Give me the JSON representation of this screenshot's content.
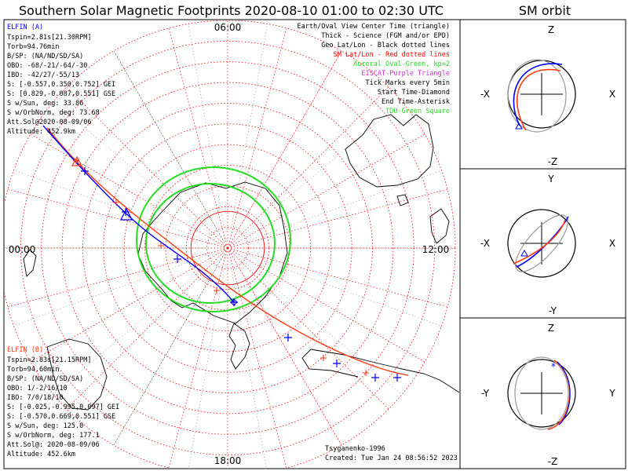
{
  "title": "Southern Solar Magnetic Footprints 2020-08-10 01:00 to 02:30 UTC",
  "right_title": "SM orbit",
  "colors": {
    "elfin_a": "#0000ff",
    "elfin_b": "#ff3c14",
    "sm_grid": "#ff0000",
    "auroral_oval": "#22dd22",
    "eiscat": "#cc33cc",
    "geo": "#000000"
  },
  "chart_data": {
    "type": "polar-footprint-map",
    "hemisphere": "south",
    "mlt_labels": [
      {
        "text": "06:00",
        "mlt": 6
      },
      {
        "text": "12:00",
        "mlt": 12
      },
      {
        "text": "18:00",
        "mlt": 18
      },
      {
        "text": "00:00",
        "mlt": 0
      }
    ],
    "elfin_a": {
      "header": "ELFIN (A)",
      "lines": [
        "Tspin=2.81s[21.30RPM]",
        "Torb=94.76min",
        "B/SP: (NA/ND/SD/SA)",
        "OBO: -68/-21/-64/-30",
        "IBO: -42/27/-55/13",
        "S: [-0.557,0.350,0.752] GEI",
        "S: [0.829,-0.087,0.551] GSE",
        "S w/Sun, deg: 33.86",
        "S w/OrbNorm, deg: 73.68",
        "Att.Sol@2020-08-09/06",
        "Altitude: 452.9km"
      ]
    },
    "elfin_b": {
      "header": "ELFIN (B)",
      "lines": [
        "Tspin=2.83s[21.15RPM]",
        "Torb=94.60min",
        "B/SP: (NA/ND/SD/SA)",
        "OBO: 1/-2/16/10",
        "IBO: 7/0/18/10",
        "S: [-0.025,-0.995,0.097] GEI",
        "S: [-0.570,0.669,0.551] GSE",
        "S w/Sun, deg: 125.0",
        "S w/OrbNorm, deg: 177.1",
        "Att.Sol@: 2020-08-09/06",
        "Altitude: 452.6km"
      ]
    },
    "legend": [
      {
        "text": "Earth/Oval View Center Time (triangle)",
        "color": "#000000"
      },
      {
        "text": "Thick - Science (FGM and/or EPD)",
        "color": "#000000"
      },
      {
        "text": "Geo Lat/Lon - Black dotted lines",
        "color": "#000000"
      },
      {
        "text": "SM Lat/Lon - Red dotted lines",
        "color": "#ff0000"
      },
      {
        "text": "Auroral Oval-Green, kp=2",
        "color": "#22dd22"
      },
      {
        "text": "EISCAT-Purple Triangle",
        "color": "#cc33cc"
      },
      {
        "text": "Tick Marks every 5min",
        "color": "#000000"
      },
      {
        "text": "Start Time-Diamond",
        "color": "#000000"
      },
      {
        "text": "End Time-Asterisk",
        "color": "#000000"
      },
      {
        "text": "TDU-Green Square",
        "color": "#22dd22"
      }
    ],
    "credits": [
      "Tsyganenko-1996",
      "Created: Tue Jan 24 08:56:52 2023"
    ],
    "orbit_panels": [
      {
        "top": "Z",
        "bottom": "-Z",
        "left": "-X",
        "right": "X"
      },
      {
        "top": "Y",
        "bottom": "-Y",
        "left": "-X",
        "right": "X"
      },
      {
        "top": "Z",
        "bottom": "-Z",
        "left": "-Y",
        "right": "Y"
      }
    ]
  }
}
